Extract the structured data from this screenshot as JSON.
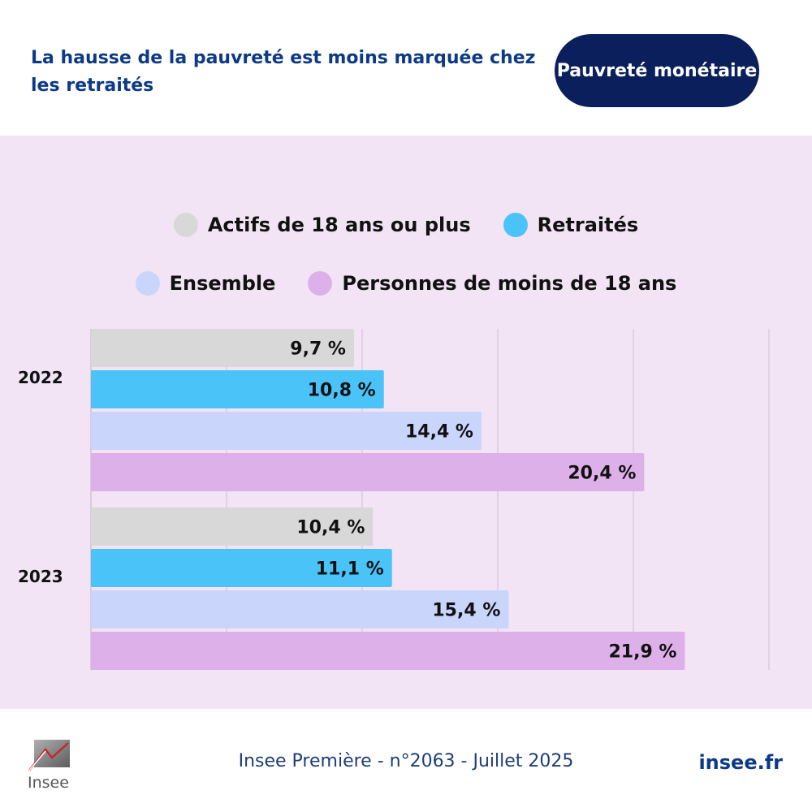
{
  "header": {
    "title": "La hausse de la pauvreté est moins marquée chez les retraités",
    "badge": "Pauvreté monétaire"
  },
  "chart_data": {
    "type": "bar",
    "orientation": "horizontal",
    "categories": [
      "2022",
      "2023"
    ],
    "series": [
      {
        "name": "Actifs de 18 ans ou plus",
        "color": "#d8d8d8",
        "values": [
          9.7,
          10.4
        ],
        "labels": [
          "9,7 %",
          "10,4 %"
        ]
      },
      {
        "name": "Retraités",
        "color": "#4ac3f9",
        "values": [
          10.8,
          11.1
        ],
        "labels": [
          "10,8 %",
          "11,1 %"
        ]
      },
      {
        "name": "Ensemble",
        "color": "#c9d5fb",
        "values": [
          14.4,
          15.4
        ],
        "labels": [
          "14,4 %",
          "15,4 %"
        ]
      },
      {
        "name": "Personnes de moins de 18 ans",
        "color": "#deb0ea",
        "values": [
          20.4,
          21.9
        ],
        "labels": [
          "20,4 %",
          "21,9 %"
        ]
      }
    ],
    "xlim": [
      0,
      25
    ],
    "x_gridlines": [
      5,
      10,
      15,
      20,
      25
    ],
    "grid": true,
    "legend": "top-center"
  },
  "footer": {
    "logo_text": "Insee",
    "source": "Insee Première - n°2063 - Juillet 2025",
    "site": "insee.fr"
  },
  "colors": {
    "title": "#0d3a86",
    "badge_bg": "#0b1f5c",
    "panel_bg": "#f2e4f5",
    "gridline": "#cdbfd4"
  }
}
